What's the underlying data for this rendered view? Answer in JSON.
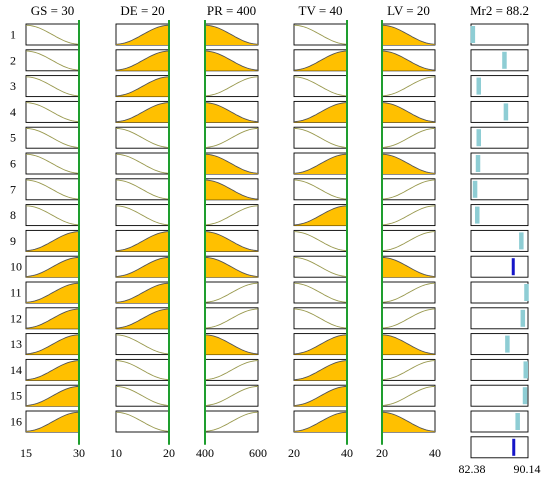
{
  "chart_data": {
    "type": "small-multiples-curves",
    "row_labels": [
      "1",
      "2",
      "3",
      "4",
      "5",
      "6",
      "7",
      "8",
      "9",
      "10",
      "11",
      "12",
      "13",
      "14",
      "15",
      "16"
    ],
    "factors": [
      {
        "header": "GS = 30",
        "ticks": [
          "15",
          "30"
        ],
        "x_min": 15,
        "x_max": 30,
        "selected_value": 30,
        "row_shapes": [
          "dec",
          "dec",
          "dec",
          "dec",
          "dec",
          "dec",
          "dec",
          "dec",
          "inc",
          "inc",
          "inc",
          "inc",
          "inc",
          "inc",
          "inc",
          "inc"
        ],
        "row_filled": [
          false,
          false,
          false,
          false,
          false,
          false,
          false,
          false,
          true,
          true,
          true,
          true,
          true,
          true,
          true,
          true
        ]
      },
      {
        "header": "DE = 20",
        "ticks": [
          "10",
          "20"
        ],
        "x_min": 10,
        "x_max": 20,
        "selected_value": 20,
        "row_shapes": [
          "inc",
          "inc",
          "inc",
          "inc",
          "dec",
          "dec",
          "dec",
          "dec",
          "inc",
          "inc",
          "inc",
          "inc",
          "dec",
          "dec",
          "dec",
          "dec"
        ],
        "row_filled": [
          true,
          true,
          true,
          true,
          false,
          false,
          false,
          false,
          true,
          true,
          true,
          true,
          false,
          false,
          false,
          false
        ]
      },
      {
        "header": "PR = 400",
        "ticks": [
          "400",
          "600"
        ],
        "x_min": 400,
        "x_max": 600,
        "selected_value": 400,
        "row_shapes": [
          "dec",
          "dec",
          "inc",
          "dec",
          "inc",
          "dec",
          "dec",
          "inc",
          "dec",
          "dec",
          "inc",
          "inc",
          "dec",
          "inc",
          "inc",
          "inc"
        ],
        "row_filled": [
          true,
          true,
          false,
          true,
          false,
          true,
          true,
          false,
          true,
          true,
          false,
          false,
          true,
          false,
          false,
          false
        ]
      },
      {
        "header": "TV = 40",
        "ticks": [
          "20",
          "40"
        ],
        "x_min": 20,
        "x_max": 40,
        "selected_value": 40,
        "row_shapes": [
          "dec",
          "inc",
          "dec",
          "inc",
          "dec",
          "inc",
          "dec",
          "inc",
          "dec",
          "dec",
          "dec",
          "dec",
          "inc",
          "inc",
          "inc",
          "inc"
        ],
        "row_filled": [
          false,
          true,
          false,
          true,
          false,
          true,
          false,
          true,
          false,
          false,
          false,
          false,
          true,
          true,
          true,
          true
        ]
      },
      {
        "header": "LV = 20",
        "ticks": [
          "20",
          "40"
        ],
        "x_min": 20,
        "x_max": 40,
        "selected_value": 20,
        "row_shapes": [
          "dec",
          "dec",
          "inc",
          "dec",
          "inc",
          "dec",
          "inc",
          "inc",
          "inc",
          "dec",
          "inc",
          "inc",
          "dec",
          "inc",
          "inc",
          "dec"
        ],
        "row_filled": [
          true,
          true,
          false,
          true,
          false,
          true,
          false,
          false,
          false,
          true,
          false,
          false,
          true,
          false,
          false,
          true
        ]
      }
    ],
    "response": {
      "header": "Mr2 = 88.2",
      "ticks": [
        "82.38",
        "90.14"
      ],
      "x_min": 82.38,
      "x_max": 90.14,
      "row_values": [
        82.6,
        86.9,
        83.4,
        87.1,
        83.4,
        83.3,
        82.9,
        83.2,
        89.2,
        88.2,
        89.9,
        89.4,
        87.3,
        89.8,
        89.7,
        88.7
      ],
      "highlighted_row": "10",
      "summary_value": 88.2
    },
    "colors": {
      "fill": "#FFC000",
      "curve_filled": "#555555",
      "curve_empty": "#9A9A50",
      "selected_line": "#1E9E2E",
      "marker": "#8ECDD4",
      "marker_selected": "#1515C8",
      "frame": "#000000"
    }
  }
}
